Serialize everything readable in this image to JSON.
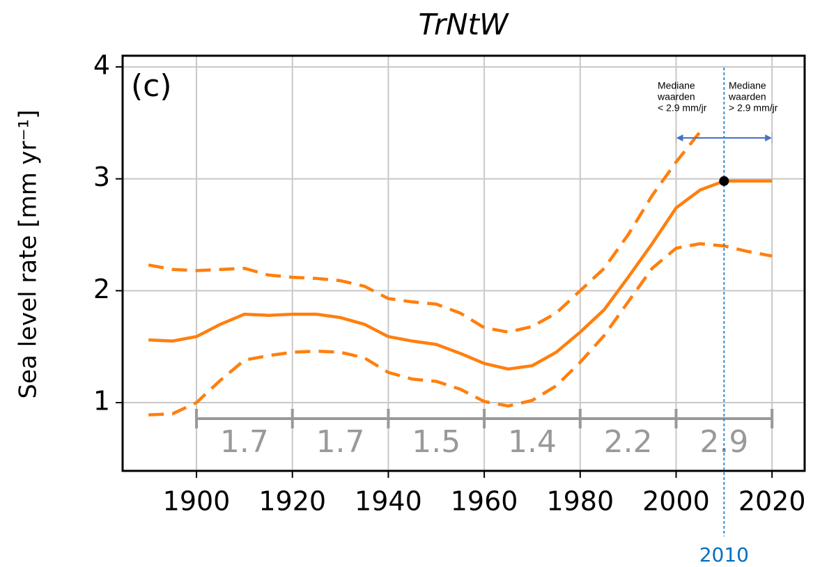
{
  "chart_data": {
    "type": "line",
    "title": "TrNtW",
    "ylabel": "Sea level rate [mm yr⁻¹]",
    "panel_label": "(c)",
    "x": [
      1890,
      1895,
      1900,
      1905,
      1910,
      1915,
      1920,
      1925,
      1930,
      1935,
      1940,
      1945,
      1950,
      1955,
      1960,
      1965,
      1970,
      1975,
      1980,
      1985,
      1990,
      1995,
      2000,
      2005,
      2010,
      2015,
      2020
    ],
    "series": [
      {
        "name": "median",
        "color": "#ff7f0e",
        "dashed": false,
        "values": [
          1.56,
          1.55,
          1.59,
          1.7,
          1.79,
          1.78,
          1.79,
          1.79,
          1.76,
          1.7,
          1.59,
          1.55,
          1.52,
          1.44,
          1.35,
          1.3,
          1.33,
          1.45,
          1.63,
          1.83,
          2.12,
          2.42,
          2.74,
          2.9,
          2.98,
          2.98,
          2.98
        ]
      },
      {
        "name": "upper",
        "color": "#ff7f0e",
        "dashed": true,
        "values": [
          2.23,
          2.19,
          2.18,
          2.19,
          2.2,
          2.14,
          2.12,
          2.11,
          2.09,
          2.04,
          1.93,
          1.9,
          1.88,
          1.8,
          1.67,
          1.63,
          1.68,
          1.8,
          2.0,
          2.2,
          2.5,
          2.85,
          3.15,
          3.42,
          null,
          null,
          null
        ]
      },
      {
        "name": "lower",
        "color": "#ff7f0e",
        "dashed": true,
        "values": [
          0.89,
          0.9,
          1.0,
          1.2,
          1.38,
          1.42,
          1.45,
          1.46,
          1.45,
          1.4,
          1.27,
          1.21,
          1.19,
          1.12,
          1.01,
          0.97,
          1.02,
          1.15,
          1.36,
          1.6,
          1.9,
          2.2,
          2.38,
          2.42,
          2.4,
          2.35,
          2.31
        ]
      }
    ],
    "xlim": [
      1884.6,
      2026.8
    ],
    "ylim": [
      0.39,
      4.1
    ],
    "xticks": [
      1900,
      1920,
      1940,
      1960,
      1980,
      2000,
      2020
    ],
    "yticks": [
      1,
      2,
      3,
      4
    ],
    "grid": true,
    "period_edges": [
      1900,
      1920,
      1940,
      1960,
      1980,
      2000,
      2020
    ],
    "period_means": [
      1.7,
      1.7,
      1.5,
      1.4,
      2.2,
      2.9
    ],
    "marker": {
      "x": 2010,
      "y": 2.98,
      "color": "#0070c0"
    },
    "span": [
      2000,
      2020
    ],
    "note_left": [
      "Mediane",
      "waarden",
      "< 2.9 mm/jr"
    ],
    "note_right": [
      "Mediane",
      "waarden",
      "> 2.9 mm/jr"
    ]
  }
}
